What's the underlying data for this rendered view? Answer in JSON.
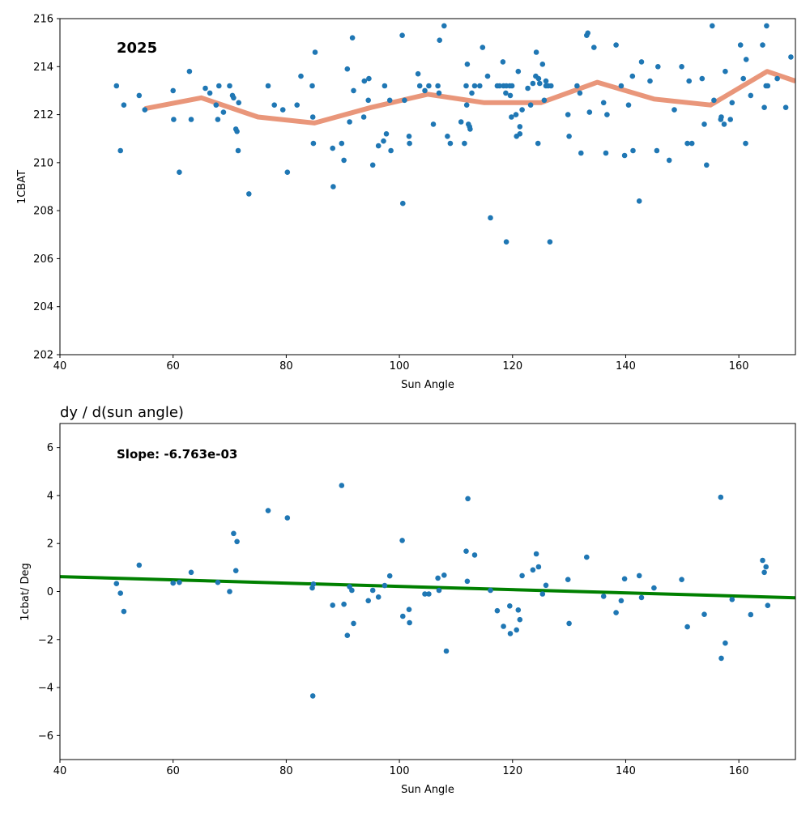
{
  "chart_data": [
    {
      "type": "scatter",
      "title": "",
      "annotation": "2025",
      "xlabel": "Sun Angle",
      "ylabel": "1CBAT",
      "xlim": [
        40,
        170
      ],
      "ylim": [
        202,
        216
      ],
      "xticks": [
        40,
        60,
        80,
        100,
        120,
        140,
        160
      ],
      "yticks": [
        202,
        204,
        206,
        208,
        210,
        212,
        214,
        216
      ],
      "grid": false,
      "colors": {
        "points": "#1f77b4",
        "trend": "#e9967a"
      },
      "series": [
        {
          "kind": "points",
          "points": [
            [
              50,
              213.2
            ],
            [
              50.7,
              210.5
            ],
            [
              51.3,
              212.4
            ],
            [
              54,
              212.8
            ],
            [
              55,
              212.2
            ],
            [
              60,
              213
            ],
            [
              60.1,
              211.8
            ],
            [
              61.1,
              209.6
            ],
            [
              62.9,
              213.8
            ],
            [
              63.2,
              211.8
            ],
            [
              65.7,
              213.1
            ],
            [
              66.5,
              212.9
            ],
            [
              67.6,
              212.4
            ],
            [
              67.9,
              211.8
            ],
            [
              68.1,
              213.2
            ],
            [
              68.9,
              212.1
            ],
            [
              70,
              213.2
            ],
            [
              70.5,
              212.8
            ],
            [
              70.7,
              212.7
            ],
            [
              71.1,
              211.4
            ],
            [
              71.3,
              211.3
            ],
            [
              71.5,
              210.5
            ],
            [
              71.6,
              212.5
            ],
            [
              73.4,
              208.7
            ],
            [
              76.8,
              213.2
            ],
            [
              77.9,
              212.4
            ],
            [
              79.4,
              212.2
            ],
            [
              80.2,
              209.6
            ],
            [
              81.9,
              212.4
            ],
            [
              82.6,
              213.6
            ],
            [
              84.6,
              213.2
            ],
            [
              84.7,
              211.9
            ],
            [
              84.8,
              210.8
            ],
            [
              85.1,
              214.6
            ],
            [
              88.2,
              210.6
            ],
            [
              88.3,
              209
            ],
            [
              89.8,
              210.8
            ],
            [
              90.2,
              210.1
            ],
            [
              90.8,
              213.9
            ],
            [
              91.2,
              211.7
            ],
            [
              91.7,
              215.2
            ],
            [
              91.9,
              213
            ],
            [
              93.7,
              211.9
            ],
            [
              93.8,
              213.4
            ],
            [
              94.6,
              213.5
            ],
            [
              94.5,
              212.6
            ],
            [
              95.3,
              209.9
            ],
            [
              96.3,
              210.7
            ],
            [
              97.2,
              210.9
            ],
            [
              97.7,
              211.2
            ],
            [
              97.4,
              213.2
            ],
            [
              98.5,
              210.5
            ],
            [
              98.3,
              212.6
            ],
            [
              100.5,
              215.3
            ],
            [
              100.6,
              208.3
            ],
            [
              100.9,
              212.6
            ],
            [
              101.8,
              210.8
            ],
            [
              101.7,
              211.1
            ],
            [
              103.3,
              213.7
            ],
            [
              103.6,
              213.2
            ],
            [
              104.5,
              213
            ],
            [
              105.2,
              213.2
            ],
            [
              106,
              211.6
            ],
            [
              106.8,
              213.2
            ],
            [
              107.1,
              215.1
            ],
            [
              107,
              212.9
            ],
            [
              107.9,
              215.7
            ],
            [
              108.5,
              211.1
            ],
            [
              109,
              210.8
            ],
            [
              110.9,
              211.7
            ],
            [
              111.5,
              210.8
            ],
            [
              111.8,
              213.2
            ],
            [
              112,
              214.1
            ],
            [
              111.9,
              212.4
            ],
            [
              112.2,
              211.6
            ],
            [
              112.4,
              211.5
            ],
            [
              112.5,
              211.4
            ],
            [
              112.8,
              212.9
            ],
            [
              113.3,
              213.2
            ],
            [
              114.2,
              213.2
            ],
            [
              114.7,
              214.8
            ],
            [
              115.6,
              213.6
            ],
            [
              116.1,
              207.7
            ],
            [
              117.3,
              213.2
            ],
            [
              117.7,
              213.2
            ],
            [
              118.3,
              214.2
            ],
            [
              118.4,
              213.2
            ],
            [
              118.8,
              212.9
            ],
            [
              118.9,
              213.2
            ],
            [
              118.9,
              206.7
            ],
            [
              119.5,
              213.2
            ],
            [
              119.6,
              212.8
            ],
            [
              119.8,
              211.9
            ],
            [
              119.9,
              213.2
            ],
            [
              120.6,
              212
            ],
            [
              120.7,
              211.1
            ],
            [
              121,
              213.8
            ],
            [
              121.3,
              211.5
            ],
            [
              121.3,
              211.2
            ],
            [
              121.7,
              212.2
            ],
            [
              122.7,
              213.1
            ],
            [
              123.2,
              212.4
            ],
            [
              123.6,
              213.3
            ],
            [
              124.1,
              213.6
            ],
            [
              124.2,
              214.6
            ],
            [
              124.5,
              210.8
            ],
            [
              124.6,
              213.5
            ],
            [
              124.8,
              213.3
            ],
            [
              125.3,
              214.1
            ],
            [
              125.6,
              212.6
            ],
            [
              125.9,
              213.2
            ],
            [
              125.9,
              213.4
            ],
            [
              126.3,
              213.2
            ],
            [
              126.6,
              206.7
            ],
            [
              126.8,
              213.2
            ],
            [
              129.8,
              212
            ],
            [
              130,
              211.1
            ],
            [
              131.4,
              213.2
            ],
            [
              131.9,
              212.9
            ],
            [
              132.1,
              210.4
            ],
            [
              133.1,
              215.3
            ],
            [
              133.3,
              215.4
            ],
            [
              133.6,
              212.1
            ],
            [
              134.4,
              214.8
            ],
            [
              136.1,
              212.5
            ],
            [
              136.5,
              210.4
            ],
            [
              136.7,
              212
            ],
            [
              138.3,
              214.9
            ],
            [
              139.2,
              213.2
            ],
            [
              139.8,
              210.3
            ],
            [
              140.5,
              212.4
            ],
            [
              141.2,
              213.6
            ],
            [
              141.3,
              210.5
            ],
            [
              142.4,
              208.4
            ],
            [
              142.8,
              214.2
            ],
            [
              144.3,
              213.4
            ],
            [
              145.5,
              210.5
            ],
            [
              145.7,
              214
            ],
            [
              147.7,
              210.1
            ],
            [
              148.6,
              212.2
            ],
            [
              149.9,
              214
            ],
            [
              150.9,
              210.8
            ],
            [
              151.2,
              213.4
            ],
            [
              151.7,
              210.8
            ],
            [
              153.5,
              213.5
            ],
            [
              153.9,
              211.6
            ],
            [
              154.3,
              209.9
            ],
            [
              155.3,
              215.7
            ],
            [
              155.6,
              212.6
            ],
            [
              156.8,
              211.8
            ],
            [
              156.9,
              211.9
            ],
            [
              157.4,
              211.6
            ],
            [
              157.6,
              213.8
            ],
            [
              158.5,
              211.8
            ],
            [
              158.8,
              212.5
            ],
            [
              160.3,
              214.9
            ],
            [
              160.8,
              213.5
            ],
            [
              161.2,
              210.8
            ],
            [
              161.3,
              214.3
            ],
            [
              162.1,
              212.8
            ],
            [
              164.2,
              214.9
            ],
            [
              164.5,
              212.3
            ],
            [
              164.8,
              213.2
            ],
            [
              164.9,
              215.7
            ],
            [
              165.1,
              213.2
            ],
            [
              166.8,
              213.5
            ],
            [
              168.3,
              212.3
            ],
            [
              169.2,
              214.4
            ]
          ]
        },
        {
          "kind": "line",
          "points": [
            [
              55,
              212.25
            ],
            [
              65,
              212.7
            ],
            [
              75,
              211.9
            ],
            [
              85,
              211.65
            ],
            [
              95,
              212.3
            ],
            [
              105,
              212.85
            ],
            [
              115,
              212.5
            ],
            [
              125,
              212.5
            ],
            [
              135,
              213.35
            ],
            [
              145,
              212.65
            ],
            [
              155,
              212.4
            ],
            [
              165,
              213.8
            ],
            [
              170,
              213.4
            ]
          ]
        }
      ]
    },
    {
      "type": "scatter",
      "title": "dy / d(sun angle)",
      "annotation": "Slope: -6.763e-03",
      "xlabel": "Sun Angle",
      "ylabel": "1cbat/ Deg",
      "xlim": [
        40,
        170
      ],
      "ylim": [
        -7,
        7
      ],
      "xticks": [
        40,
        60,
        80,
        100,
        120,
        140,
        160
      ],
      "yticks": [
        -6,
        -4,
        -2,
        0,
        2,
        4,
        6
      ],
      "grid": false,
      "colors": {
        "points": "#1f77b4",
        "trend": "#008000"
      },
      "series": [
        {
          "kind": "points",
          "points": [
            [
              50,
              0.33
            ],
            [
              50.7,
              -0.07
            ],
            [
              51.3,
              -0.83
            ],
            [
              54,
              1.1
            ],
            [
              60,
              0.35
            ],
            [
              61.1,
              0.38
            ],
            [
              63.2,
              0.8
            ],
            [
              67.9,
              0.38
            ],
            [
              70,
              0
            ],
            [
              70.7,
              2.42
            ],
            [
              71.3,
              2.08
            ],
            [
              71.1,
              0.87
            ],
            [
              76.8,
              3.37
            ],
            [
              80.2,
              3.07
            ],
            [
              84.6,
              0.15
            ],
            [
              84.8,
              0.31
            ],
            [
              84.7,
              -4.35
            ],
            [
              88.2,
              -0.57
            ],
            [
              89.8,
              4.42
            ],
            [
              90.2,
              -0.53
            ],
            [
              90.8,
              -1.83
            ],
            [
              91.2,
              0.2
            ],
            [
              91.6,
              0.05
            ],
            [
              91.9,
              -1.33
            ],
            [
              94.5,
              -0.38
            ],
            [
              95.3,
              0.05
            ],
            [
              96.3,
              -0.23
            ],
            [
              97.4,
              0.25
            ],
            [
              98.3,
              0.65
            ],
            [
              100.5,
              2.13
            ],
            [
              100.6,
              -1.03
            ],
            [
              101.7,
              -0.75
            ],
            [
              101.8,
              -1.3
            ],
            [
              104.5,
              -0.1
            ],
            [
              105.2,
              -0.1
            ],
            [
              106.8,
              0.56
            ],
            [
              107,
              0.05
            ],
            [
              107.9,
              0.68
            ],
            [
              108.3,
              -2.48
            ],
            [
              111.8,
              1.68
            ],
            [
              112,
              0.43
            ],
            [
              112.1,
              3.87
            ],
            [
              113.3,
              1.52
            ],
            [
              116.1,
              0.05
            ],
            [
              117.3,
              -0.8
            ],
            [
              118.4,
              -1.45
            ],
            [
              119.5,
              -0.6
            ],
            [
              119.6,
              -1.75
            ],
            [
              120.7,
              -1.6
            ],
            [
              121,
              -0.77
            ],
            [
              121.3,
              -1.17
            ],
            [
              121.7,
              0.66
            ],
            [
              123.6,
              0.9
            ],
            [
              124.2,
              1.57
            ],
            [
              124.6,
              1.03
            ],
            [
              125.3,
              -0.1
            ],
            [
              125.9,
              0.26
            ],
            [
              129.8,
              0.5
            ],
            [
              130,
              -1.33
            ],
            [
              133.1,
              1.43
            ],
            [
              136.1,
              -0.2
            ],
            [
              138.3,
              -0.88
            ],
            [
              139.2,
              -0.38
            ],
            [
              139.8,
              0.53
            ],
            [
              142.4,
              0.66
            ],
            [
              142.8,
              -0.25
            ],
            [
              145,
              0.15
            ],
            [
              149.9,
              0.5
            ],
            [
              150.9,
              -1.47
            ],
            [
              153.9,
              -0.95
            ],
            [
              156.8,
              3.93
            ],
            [
              156.9,
              -2.78
            ],
            [
              157.6,
              -2.15
            ],
            [
              158.8,
              -0.33
            ],
            [
              162.1,
              -0.96
            ],
            [
              164.2,
              1.3
            ],
            [
              164.5,
              0.8
            ],
            [
              164.8,
              1.03
            ],
            [
              165.1,
              -0.58
            ]
          ]
        },
        {
          "kind": "line",
          "points": [
            [
              40,
              0.62
            ],
            [
              170,
              -0.26
            ]
          ]
        }
      ]
    }
  ]
}
